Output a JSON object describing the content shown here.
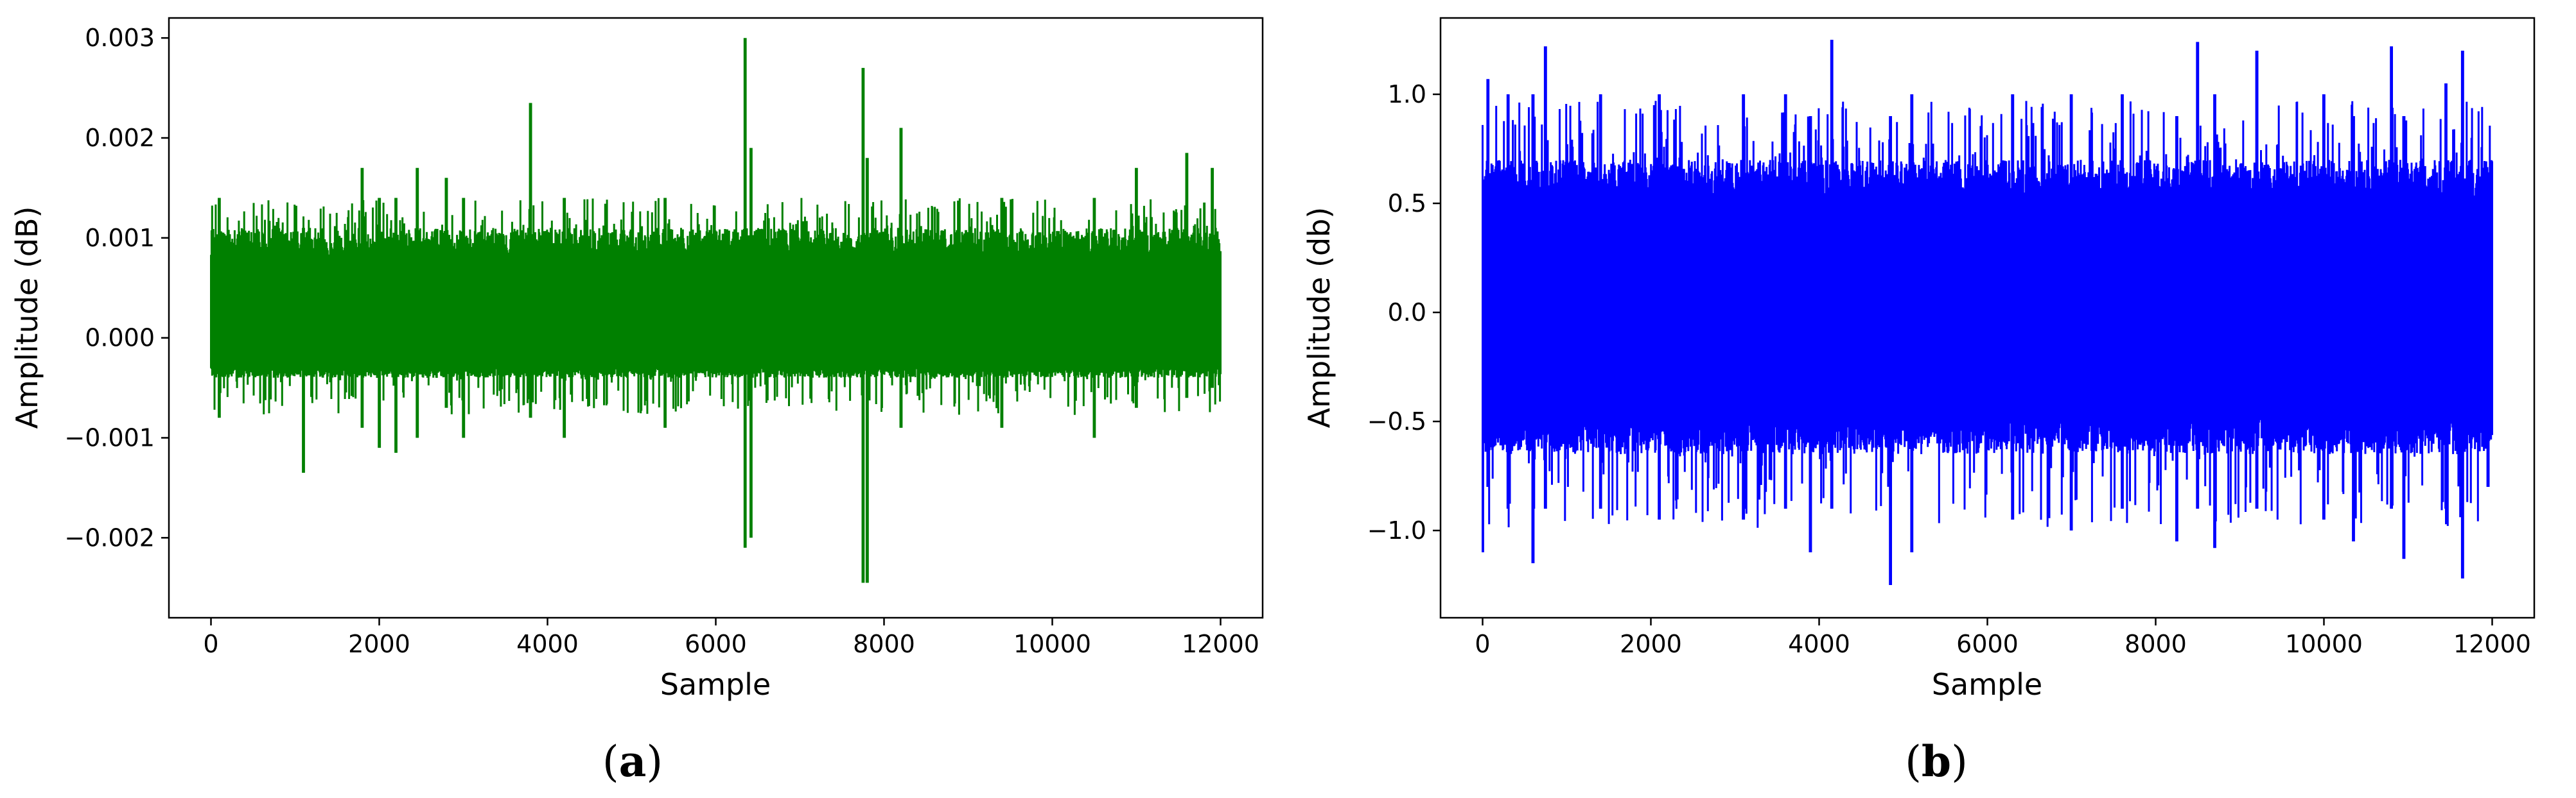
{
  "chart_data": [
    {
      "type": "line",
      "caption": {
        "open": "(",
        "letter": "a",
        "close": ")"
      },
      "xlabel": "Sample",
      "ylabel": "Amplitude (dB)",
      "xlim": [
        -500,
        12500
      ],
      "ylim": [
        -0.0028,
        0.0032
      ],
      "x_ticks": [
        0,
        2000,
        4000,
        6000,
        8000,
        10000,
        12000
      ],
      "x_tick_labels": [
        "0",
        "2000",
        "4000",
        "6000",
        "8000",
        "10000",
        "12000"
      ],
      "y_ticks": [
        -0.002,
        -0.001,
        0.0,
        0.001,
        0.002,
        0.003
      ],
      "y_tick_labels": [
        "−0.002",
        "−0.001",
        "0.000",
        "0.001",
        "0.002",
        "0.003"
      ],
      "grid": false,
      "color": "#008000",
      "series": [
        {
          "n_samples": 12000,
          "x_start": 0,
          "x_end": 12000,
          "typical_range": [
            -0.0004,
            0.0011
          ],
          "spikes": [
            {
              "x": 100,
              "max": 0.0014,
              "min": -0.0008
            },
            {
              "x": 1100,
              "max": 0.0011,
              "min": -0.00135
            },
            {
              "x": 1800,
              "max": 0.0017,
              "min": -0.0009
            },
            {
              "x": 2000,
              "max": 0.0014,
              "min": -0.0011
            },
            {
              "x": 2200,
              "max": 0.0014,
              "min": -0.00115
            },
            {
              "x": 2450,
              "max": 0.0017,
              "min": -0.001
            },
            {
              "x": 2800,
              "max": 0.0016,
              "min": -0.0007
            },
            {
              "x": 3000,
              "max": 0.0014,
              "min": -0.001
            },
            {
              "x": 3800,
              "max": 0.00235,
              "min": -0.0008
            },
            {
              "x": 4200,
              "max": 0.0014,
              "min": -0.001
            },
            {
              "x": 5400,
              "max": 0.0014,
              "min": -0.0009
            },
            {
              "x": 6350,
              "max": 0.003,
              "min": -0.0021
            },
            {
              "x": 6420,
              "max": 0.0019,
              "min": -0.002
            },
            {
              "x": 7750,
              "max": 0.0027,
              "min": -0.00245
            },
            {
              "x": 7800,
              "max": 0.0018,
              "min": -0.00245
            },
            {
              "x": 8200,
              "max": 0.0021,
              "min": -0.0009
            },
            {
              "x": 9400,
              "max": 0.0014,
              "min": -0.0009
            },
            {
              "x": 10500,
              "max": 0.0014,
              "min": -0.001
            },
            {
              "x": 11000,
              "max": 0.0017,
              "min": -0.0007
            },
            {
              "x": 11600,
              "max": 0.00185,
              "min": -0.0006
            },
            {
              "x": 11900,
              "max": 0.0017,
              "min": -0.0005
            }
          ]
        }
      ]
    },
    {
      "type": "line",
      "caption": {
        "open": "(",
        "letter": "b",
        "close": ")"
      },
      "xlabel": "Sample",
      "ylabel": "Amplitude (db)",
      "xlim": [
        -500,
        12500
      ],
      "ylim": [
        -1.4,
        1.35
      ],
      "x_ticks": [
        0,
        2000,
        4000,
        6000,
        8000,
        10000,
        12000
      ],
      "x_tick_labels": [
        "0",
        "2000",
        "4000",
        "6000",
        "8000",
        "10000",
        "12000"
      ],
      "y_ticks": [
        -1.0,
        -0.5,
        0.0,
        0.5,
        1.0
      ],
      "y_tick_labels": [
        "−1.0",
        "−0.5",
        "0.0",
        "0.5",
        "1.0"
      ],
      "grid": false,
      "color": "#0000ff",
      "series": [
        {
          "n_samples": 12000,
          "x_start": 0,
          "x_end": 12000,
          "typical_range": [
            -0.65,
            0.7
          ],
          "spikes": [
            {
              "x": 0,
              "max": 0.4,
              "min": -1.1
            },
            {
              "x": 60,
              "max": 1.07,
              "min": -0.8
            },
            {
              "x": 300,
              "max": 1.0,
              "min": -0.9
            },
            {
              "x": 600,
              "max": 1.0,
              "min": -1.15
            },
            {
              "x": 750,
              "max": 1.22,
              "min": -0.9
            },
            {
              "x": 1400,
              "max": 1.0,
              "min": -0.9
            },
            {
              "x": 2100,
              "max": 1.0,
              "min": -0.95
            },
            {
              "x": 3100,
              "max": 1.0,
              "min": -0.95
            },
            {
              "x": 3600,
              "max": 1.0,
              "min": -0.9
            },
            {
              "x": 3900,
              "max": 0.9,
              "min": -1.1
            },
            {
              "x": 4150,
              "max": 1.25,
              "min": -0.9
            },
            {
              "x": 4850,
              "max": 0.9,
              "min": -1.25
            },
            {
              "x": 5100,
              "max": 1.0,
              "min": -1.1
            },
            {
              "x": 6300,
              "max": 1.0,
              "min": -0.95
            },
            {
              "x": 7000,
              "max": 1.0,
              "min": -1.0
            },
            {
              "x": 7600,
              "max": 1.0,
              "min": -0.9
            },
            {
              "x": 8250,
              "max": 0.9,
              "min": -1.05
            },
            {
              "x": 8500,
              "max": 1.24,
              "min": -0.9
            },
            {
              "x": 8700,
              "max": 1.0,
              "min": -1.08
            },
            {
              "x": 9200,
              "max": 1.2,
              "min": -0.9
            },
            {
              "x": 10000,
              "max": 1.0,
              "min": -0.95
            },
            {
              "x": 10350,
              "max": 0.9,
              "min": -1.05
            },
            {
              "x": 10800,
              "max": 1.22,
              "min": -0.9
            },
            {
              "x": 10950,
              "max": 0.9,
              "min": -1.13
            },
            {
              "x": 11450,
              "max": 1.05,
              "min": -0.9
            },
            {
              "x": 11650,
              "max": 1.2,
              "min": -1.22
            },
            {
              "x": 11950,
              "max": 0.6,
              "min": -0.8
            }
          ]
        }
      ]
    }
  ]
}
